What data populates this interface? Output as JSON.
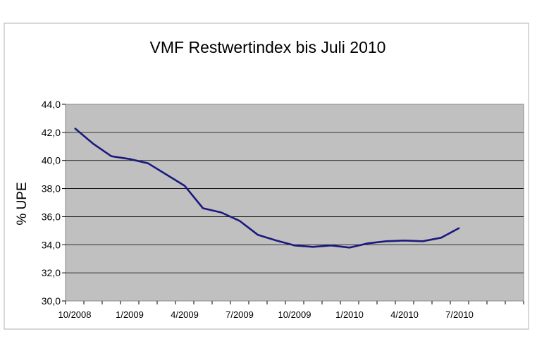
{
  "chart_data": {
    "type": "line",
    "title": "VMF Restwertindex bis Juli 2010",
    "xlabel": "",
    "ylabel": "% UPE",
    "ylim": [
      30,
      44
    ],
    "yticks": [
      "30,0",
      "32,0",
      "34,0",
      "36,0",
      "38,0",
      "40,0",
      "42,0",
      "44,0"
    ],
    "ytick_values": [
      30,
      32,
      34,
      36,
      38,
      40,
      42,
      44
    ],
    "x_categories": [
      "10/2008",
      "",
      "",
      "1/2009",
      "",
      "",
      "4/2009",
      "",
      "",
      "7/2009",
      "",
      "",
      "10/2009",
      "",
      "",
      "1/2010",
      "",
      "",
      "4/2010",
      "",
      "",
      "7/2010",
      "",
      "",
      ""
    ],
    "xtick_labels": [
      "10/2008",
      "1/2009",
      "4/2009",
      "7/2009",
      "10/2009",
      "1/2010",
      "4/2010",
      "7/2010"
    ],
    "grid": true,
    "line_color": "#1a1a7e",
    "plot_background": "#c0c0c0",
    "series": [
      {
        "x": [
          "10/2008",
          "11/2008",
          "12/2008",
          "1/2009",
          "2/2009",
          "3/2009",
          "4/2009",
          "5/2009",
          "6/2009",
          "7/2009",
          "8/2009",
          "9/2009",
          "10/2009",
          "11/2009",
          "12/2009",
          "1/2010",
          "2/2010",
          "3/2010",
          "4/2010",
          "5/2010",
          "6/2010",
          "7/2010"
        ],
        "values": [
          42.3,
          41.2,
          40.3,
          40.1,
          39.8,
          39.0,
          38.2,
          36.6,
          36.3,
          35.7,
          34.7,
          34.3,
          33.95,
          33.85,
          33.95,
          33.8,
          34.1,
          34.25,
          34.3,
          34.25,
          34.5,
          35.2
        ]
      }
    ]
  }
}
